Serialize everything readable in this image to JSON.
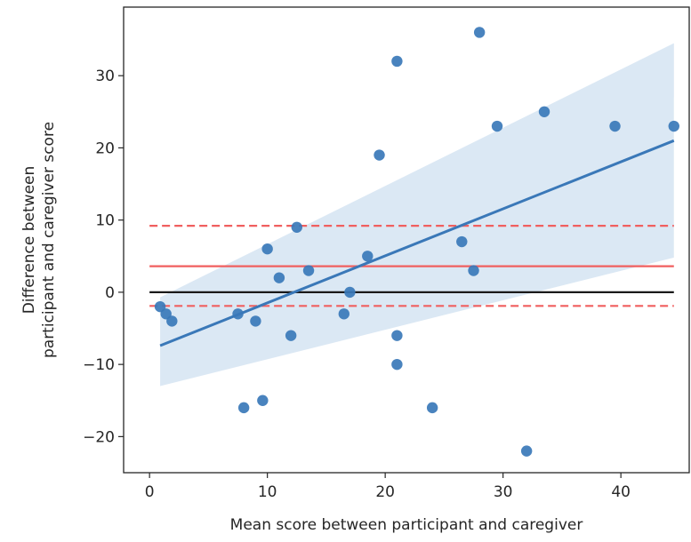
{
  "chart_data": {
    "type": "scatter",
    "title": "",
    "xlabel": "Mean score between participant and caregiver",
    "ylabel_lines": [
      "Difference between",
      "participant and caregiver score"
    ],
    "xlim": [
      -2.2,
      45.8
    ],
    "ylim": [
      -25,
      39.5
    ],
    "xticks": [
      0,
      10,
      20,
      30,
      40
    ],
    "xtick_labels": [
      "0",
      "10",
      "20",
      "30",
      "40"
    ],
    "yticks": [
      -20,
      -10,
      0,
      10,
      20,
      30
    ],
    "ytick_labels": [
      "−20",
      "−10",
      "0",
      "10",
      "20",
      "30"
    ],
    "grid": false,
    "points": {
      "x": [
        0.9,
        1.4,
        1.9,
        7.5,
        8.0,
        9.0,
        9.6,
        10.0,
        11.0,
        12.0,
        12.5,
        13.5,
        16.5,
        17.0,
        18.5,
        19.5,
        21.0,
        21.0,
        21.0,
        24.0,
        26.5,
        27.5,
        28.0,
        29.5,
        32.0,
        33.5,
        39.5,
        44.5
      ],
      "y": [
        -2,
        -3,
        -4,
        -3,
        -16,
        -4,
        -15,
        6,
        2,
        -6,
        9,
        3,
        -3,
        0,
        5,
        19,
        32,
        -6,
        -10,
        -16,
        7,
        3,
        36,
        23,
        -22,
        25,
        23,
        23
      ]
    },
    "regression": {
      "x": [
        0.9,
        44.5
      ],
      "y": [
        -7.4,
        21.0
      ]
    },
    "confidence_band": {
      "x": [
        0.9,
        44.5
      ],
      "upper": [
        -0.7,
        34.5
      ],
      "lower": [
        -13.0,
        4.8
      ]
    },
    "reference_lines": {
      "zero": 0,
      "mean_difference": 3.6,
      "limits_of_agreement": [
        9.2,
        -1.9
      ]
    },
    "line_span": [
      0,
      44.5
    ],
    "colors": {
      "points": "#3a78b8",
      "regression": "#3a78b8",
      "band": "#c7dbee",
      "zero_line": "#1a1a1a",
      "mean_line": "#f05f5f",
      "loa_line": "#f05f5f",
      "axes": "#262626"
    }
  }
}
